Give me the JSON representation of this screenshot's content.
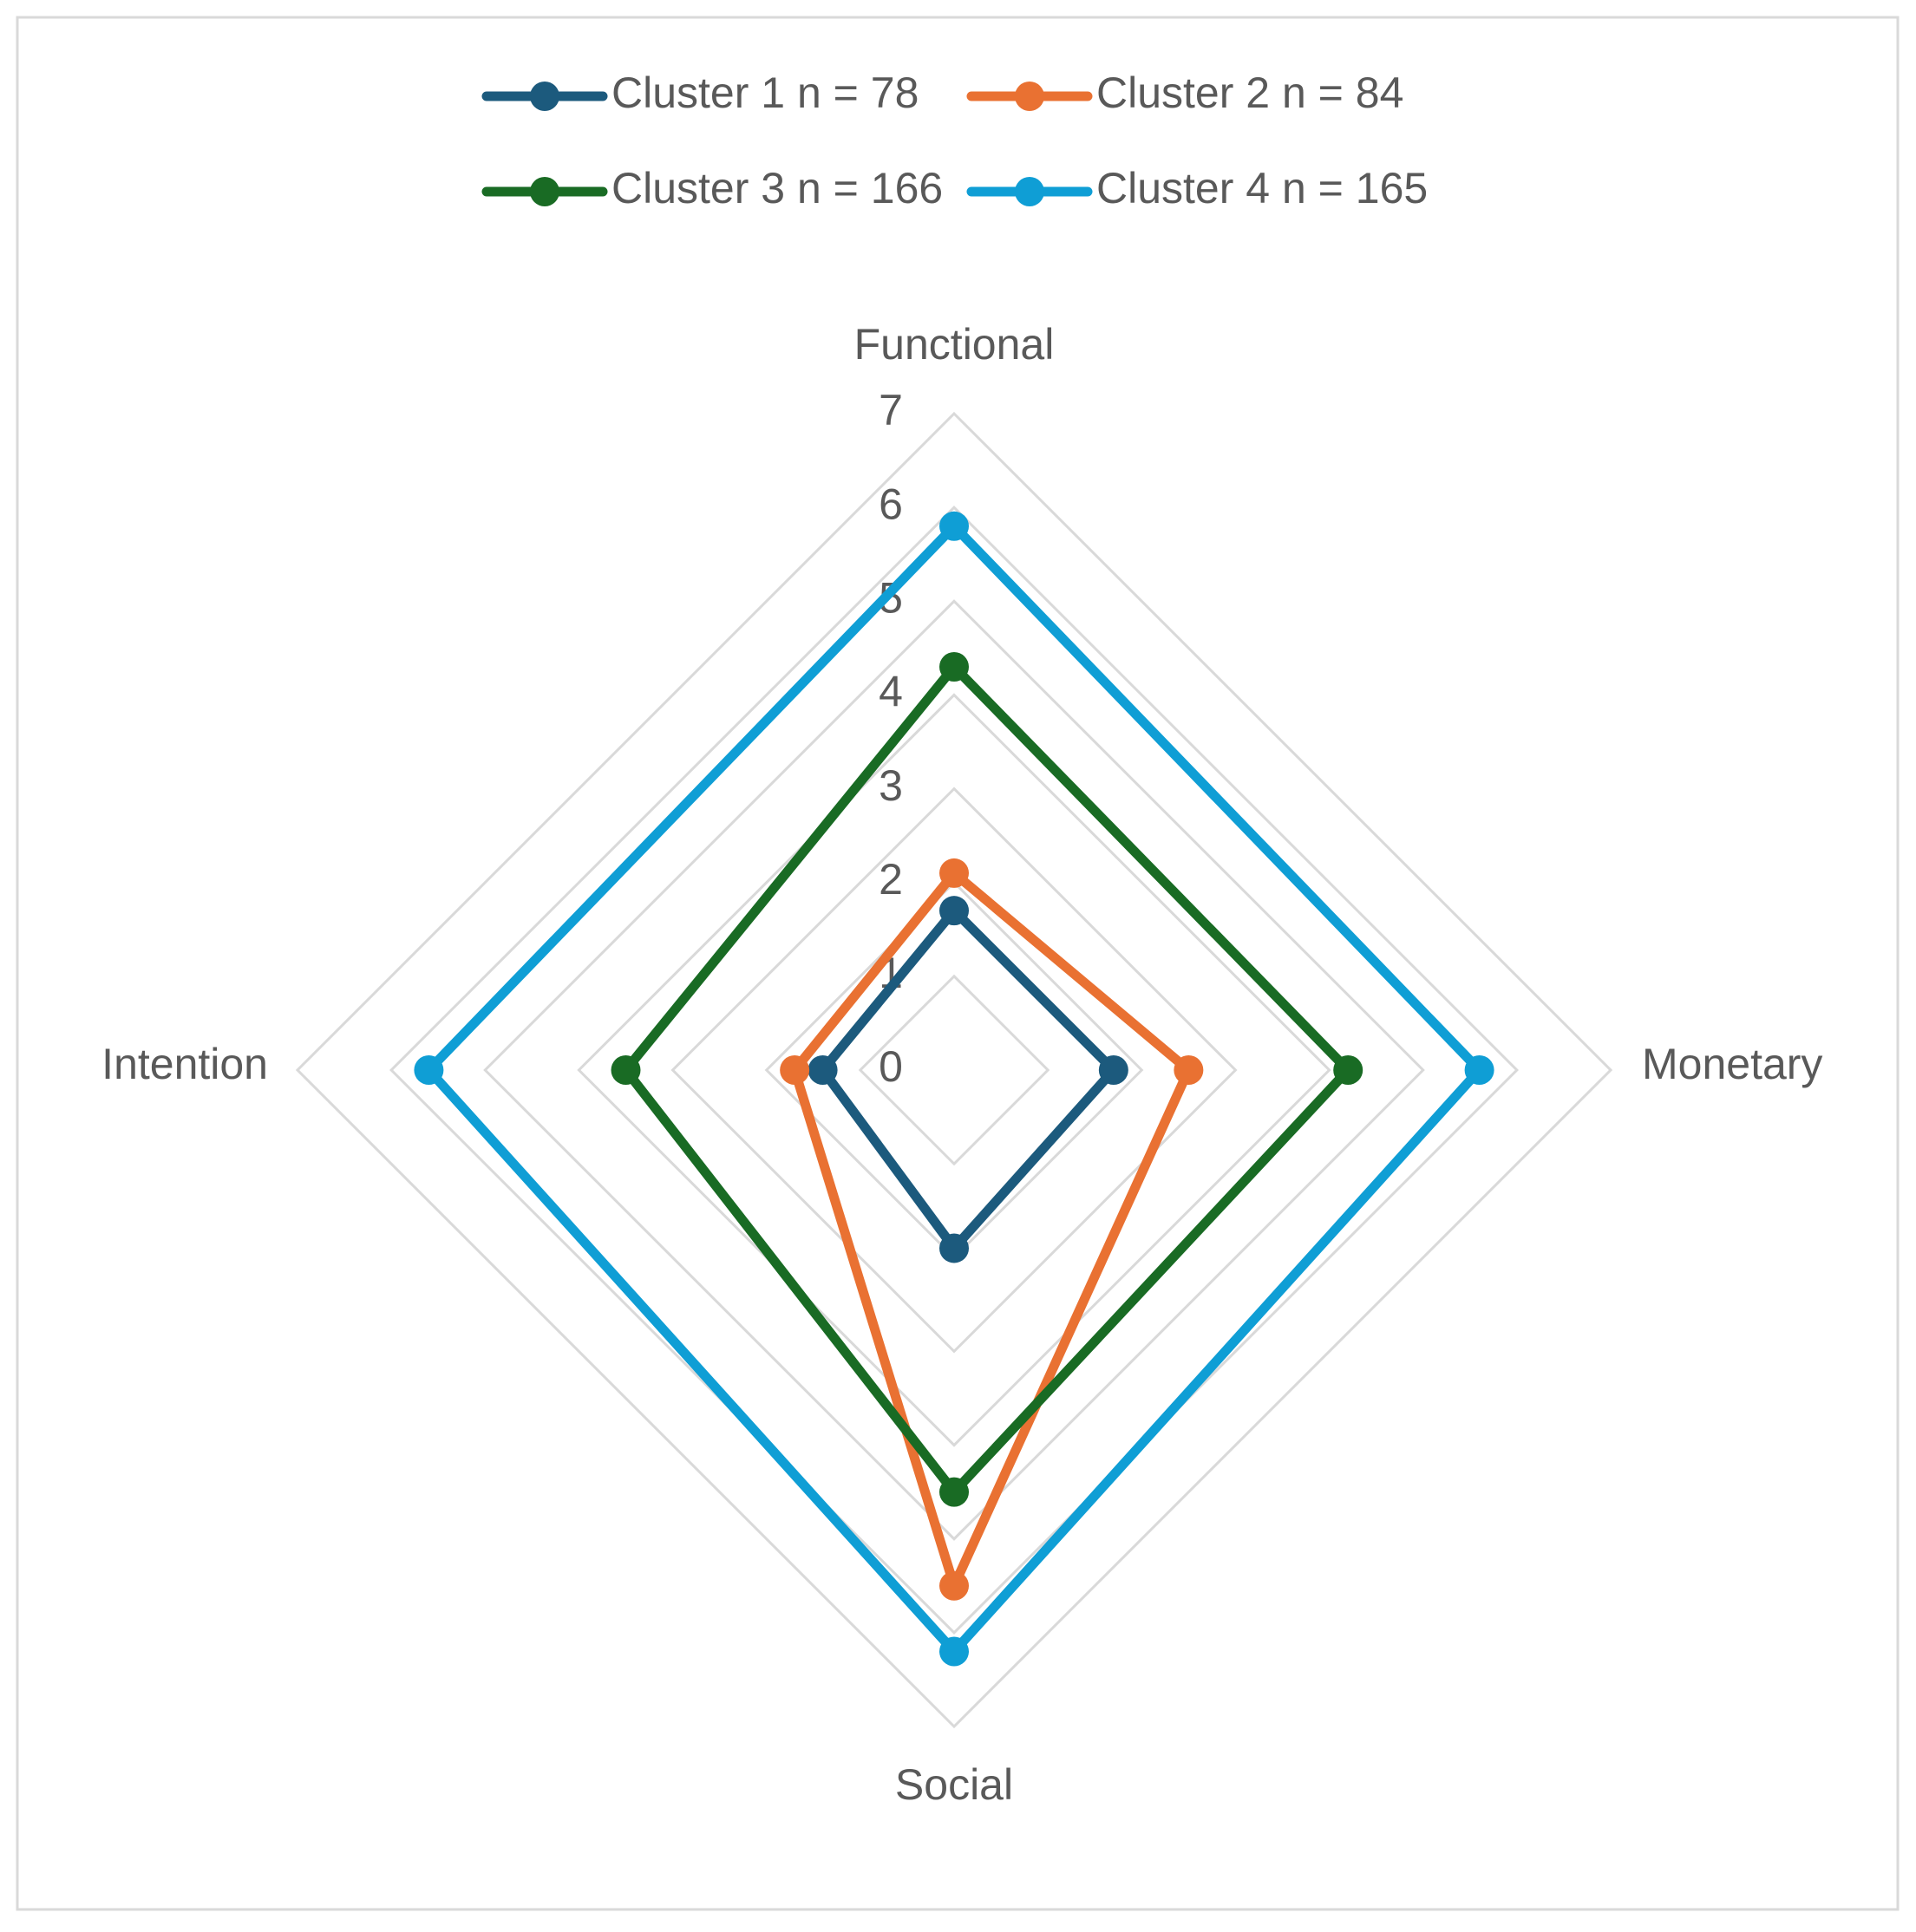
{
  "chart_data": {
    "type": "radar",
    "categories": [
      "Functional",
      "Monetary",
      "Social",
      "Intention"
    ],
    "series": [
      {
        "name": "Cluster 1 n = 78",
        "color": "#1c5a7d",
        "values": [
          1.7,
          1.7,
          1.9,
          1.4
        ]
      },
      {
        "name": "Cluster 2 n = 84",
        "color": "#e97132",
        "values": [
          2.1,
          2.5,
          5.5,
          1.7
        ]
      },
      {
        "name": "Cluster 3 n = 166",
        "color": "#196b24",
        "values": [
          4.3,
          4.2,
          4.5,
          3.5
        ]
      },
      {
        "name": "Cluster 4 n = 165",
        "color": "#0f9ed5",
        "values": [
          5.8,
          5.6,
          6.2,
          5.6
        ]
      }
    ],
    "ylim": [
      0,
      7
    ],
    "yticks": [
      0,
      1,
      2,
      3,
      4,
      5,
      6,
      7
    ],
    "grid": true,
    "legend": "top"
  }
}
